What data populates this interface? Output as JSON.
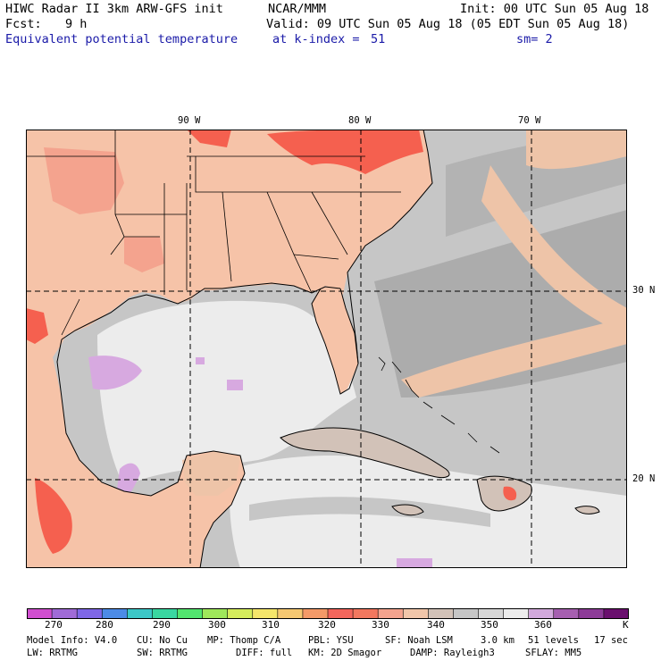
{
  "header": {
    "model_title": "HIWC Radar II 3km ARW-GFS init",
    "institution": "NCAR/MMM",
    "init_time": "Init: 00 UTC Sun 05 Aug 18",
    "forecast_label": "Fcst:",
    "forecast_hours": "9 h",
    "valid_time": "Valid: 09 UTC Sun 05 Aug 18 (05 EDT Sun 05 Aug 18)",
    "field_name": "Equivalent potential temperature",
    "level": "at k-index =",
    "level_value": "51",
    "smoothing": "sm= 2"
  },
  "map": {
    "longitude_labels": [
      "90 W",
      "80 W",
      "70 W"
    ],
    "latitude_labels": [
      "30 N",
      "20 N"
    ],
    "colors": {
      "land_warm": "#f6c3a8",
      "hot": "#f5604f",
      "ocean_gray": "#c4c4c4",
      "ocean_dark": "#aaaaaa",
      "ocean_light": "#ececec",
      "purple": "#d7a9e0",
      "grid": "#000000"
    }
  },
  "colorbar": {
    "ticks": [
      "270",
      "280",
      "290",
      "300",
      "310",
      "320",
      "330",
      "340",
      "350",
      "360"
    ],
    "unit": "K",
    "colors": [
      "#d14fd0",
      "#a06bd7",
      "#7f67e7",
      "#4c8be6",
      "#3cc7c7",
      "#3ad7a1",
      "#52e56f",
      "#9fe85b",
      "#d4ec5c",
      "#f4e56b",
      "#f6c872",
      "#f49a68",
      "#f4665c",
      "#f2785f",
      "#f4a38e",
      "#f1c6aa",
      "#d2c2b8",
      "#c6c6c6",
      "#d7d7d7",
      "#ececec",
      "#d2a9dc",
      "#a65fb0",
      "#8d3b98",
      "#6a0f6e"
    ]
  },
  "model_info": {
    "line1": [
      "Model Info: V4.0",
      "CU: No Cu",
      "MP: Thomp C/A",
      "PBL: YSU",
      "SF: Noah LSM",
      "3.0 km",
      "51 levels",
      "17 sec"
    ],
    "line2": [
      "LW: RRTMG",
      "SW: RRTMG",
      "DIFF: full",
      "KM: 2D Smagor",
      "DAMP: Rayleigh3",
      "SFLAY: MM5"
    ]
  }
}
